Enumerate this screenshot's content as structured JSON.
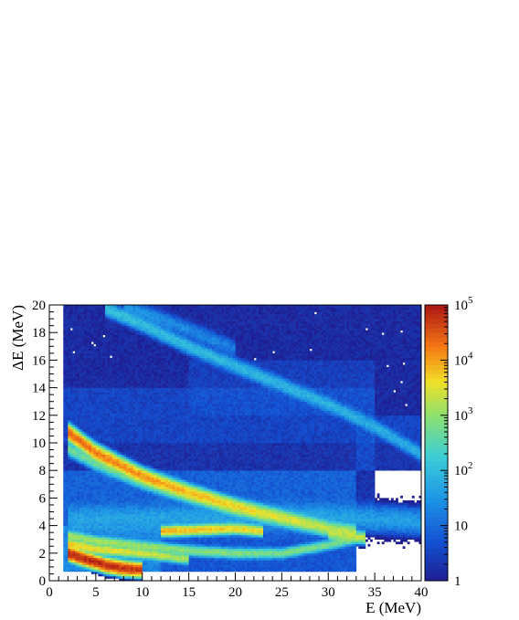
{
  "chart_data": {
    "type": "heatmap",
    "title": "",
    "xlabel": "E (MeV)",
    "ylabel": "ΔE (MeV)",
    "xlim": [
      0,
      40
    ],
    "ylim": [
      0,
      20
    ],
    "x_ticks": [
      0,
      5,
      10,
      15,
      20,
      25,
      30,
      35,
      40
    ],
    "y_ticks": [
      0,
      2,
      4,
      6,
      8,
      10,
      12,
      14,
      16,
      18,
      20
    ],
    "colorbar": {
      "scale": "log",
      "range": [
        1,
        100000
      ],
      "ticks": [
        {
          "value": 1,
          "label": "1"
        },
        {
          "value": 10,
          "label": "10"
        },
        {
          "value": 100,
          "label": "10",
          "exp": "2"
        },
        {
          "value": 1000,
          "label": "10",
          "exp": "3"
        },
        {
          "value": 10000,
          "label": "10",
          "exp": "4"
        },
        {
          "value": 100000,
          "label": "10",
          "exp": "5"
        }
      ]
    },
    "bands": [
      {
        "points": [
          [
            2,
            10.8
          ],
          [
            5,
            9.3
          ],
          [
            10,
            7.6
          ],
          [
            15,
            6.4
          ],
          [
            20,
            5.4
          ],
          [
            25,
            4.6
          ],
          [
            30,
            3.8
          ],
          [
            33,
            3.5
          ]
        ],
        "width": 0.22,
        "peak": 25000,
        "decay": 0.09
      },
      {
        "points": [
          [
            2,
            9.6
          ],
          [
            5,
            8.5
          ],
          [
            10,
            7.1
          ],
          [
            15,
            6.0
          ],
          [
            20,
            5.1
          ],
          [
            25,
            4.3
          ],
          [
            30,
            3.7
          ]
        ],
        "width": 0.2,
        "peak": 600,
        "decay": 0.06
      },
      {
        "points": [
          [
            2,
            2.0
          ],
          [
            4,
            1.55
          ],
          [
            6,
            1.15
          ],
          [
            8,
            0.9
          ],
          [
            10,
            0.8
          ]
        ],
        "width": 0.18,
        "peak": 90000,
        "decay": 0.05
      },
      {
        "points": [
          [
            2,
            2.7
          ],
          [
            5,
            2.3
          ],
          [
            10,
            2.0
          ],
          [
            15,
            1.6
          ]
        ],
        "width": 0.15,
        "peak": 6000,
        "decay": 0.1
      },
      {
        "points": [
          [
            2,
            3.3
          ],
          [
            5,
            2.9
          ],
          [
            10,
            2.55
          ],
          [
            15,
            2.2
          ],
          [
            20,
            2.0
          ],
          [
            25,
            2.0
          ],
          [
            30,
            2.6
          ],
          [
            34,
            3.2
          ]
        ],
        "width": 0.15,
        "peak": 1500,
        "decay": 0.03
      },
      {
        "points": [
          [
            12,
            3.6
          ],
          [
            16,
            3.7
          ],
          [
            20,
            3.8
          ],
          [
            23,
            3.6
          ]
        ],
        "width": 0.15,
        "peak": 8000,
        "decay": 0.05
      },
      {
        "points": [
          [
            30,
            3.4
          ],
          [
            33,
            3.2
          ],
          [
            34,
            3.1
          ]
        ],
        "width": 0.18,
        "peak": 1500,
        "decay": 0.0
      },
      {
        "points": [
          [
            6,
            19.8
          ],
          [
            10,
            18.6
          ],
          [
            15,
            17.0
          ],
          [
            20,
            15.6
          ],
          [
            25,
            14.2
          ],
          [
            30,
            12.8
          ],
          [
            35,
            11.2
          ],
          [
            40,
            9.2
          ]
        ],
        "width": 0.25,
        "peak": 120,
        "decay": 0.02
      },
      {
        "points": [
          [
            8,
            20.0
          ],
          [
            15,
            18.2
          ],
          [
            20,
            16.8
          ]
        ],
        "width": 0.3,
        "peak": 30,
        "decay": 0.05
      },
      {
        "points": [
          [
            2,
            4.5
          ],
          [
            10,
            4.5
          ],
          [
            20,
            4.6
          ],
          [
            30,
            4.6
          ],
          [
            35,
            4.5
          ],
          [
            40,
            4.3
          ]
        ],
        "width": 0.5,
        "peak": 40,
        "decay": 0.0
      }
    ],
    "regions": [
      {
        "x": [
          1.5,
          33
        ],
        "y": [
          0.6,
          8
        ],
        "density": 6
      },
      {
        "x": [
          1.5,
          35
        ],
        "y": [
          4,
          14
        ],
        "density": 2
      },
      {
        "x": [
          1.5,
          40
        ],
        "y": [
          10,
          20
        ],
        "density": 1.5
      },
      {
        "x": [
          15,
          35
        ],
        "y": [
          12,
          16
        ],
        "density": 1.5
      },
      {
        "x": [
          33,
          40
        ],
        "y": [
          8,
          12
        ],
        "density": 2
      },
      {
        "x": [
          1.5,
          12
        ],
        "y": [
          0.6,
          4
        ],
        "density": 15
      }
    ]
  }
}
